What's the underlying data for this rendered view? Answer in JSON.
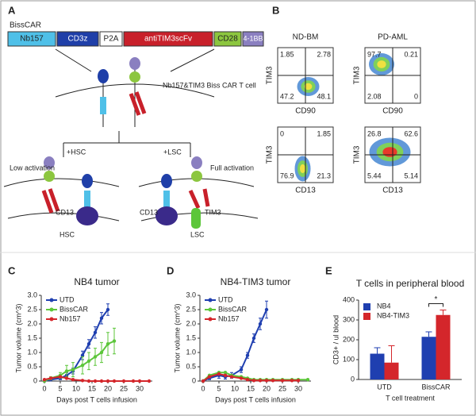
{
  "panel_a": {
    "label": "A",
    "construct": "BissCAR",
    "genes": [
      "Nb157",
      "CD3z",
      "P2A",
      "antiTIM3scFv",
      "CD28",
      "4-1BB"
    ],
    "cell_label": "Nb157&TIM3 Biss CAR T cell",
    "left": {
      "condition": "+HSC",
      "activation": "Low activation",
      "antigen": "CD13",
      "target": "HSC"
    },
    "right": {
      "condition": "+LSC",
      "activation": "Full activation",
      "antigens": [
        "CD13",
        "TIM3"
      ],
      "target": "LSC"
    }
  },
  "panel_b": {
    "label": "B",
    "columns": [
      "ND-BM",
      "PD-AML"
    ],
    "plots": [
      {
        "x_label": "CD90",
        "y_label": "TIM3",
        "quadrants": [
          "1.85",
          "2.78",
          "47.2",
          "48.1"
        ]
      },
      {
        "x_label": "CD90",
        "y_label": "TIM3",
        "quadrants": [
          "97.7",
          "0.21",
          "2.08",
          "0"
        ]
      },
      {
        "x_label": "CD13",
        "y_label": "TIM3",
        "quadrants": [
          "0",
          "1.85",
          "76.9",
          "21.3"
        ]
      },
      {
        "x_label": "CD13",
        "y_label": "TIM3",
        "quadrants": [
          "26.8",
          "62.6",
          "5.44",
          "5.14"
        ]
      }
    ]
  },
  "chart_data": [
    {
      "type": "line",
      "label": "C",
      "title": "NB4 tumor",
      "x_label": "Days post T cells infusion",
      "y_label": "Tumor volume (cm^3)",
      "x": [
        0,
        2,
        5,
        7,
        9,
        12,
        14,
        16,
        18,
        20,
        22,
        25,
        28,
        30,
        33
      ],
      "series": [
        {
          "name": "UTD",
          "color": "#1f3fb0",
          "values": [
            0,
            0.05,
            0.1,
            0.2,
            0.35,
            0.9,
            1.3,
            1.7,
            2.2,
            2.5,
            null,
            null,
            null,
            null,
            null
          ],
          "errors": [
            0.02,
            0.03,
            0.05,
            0.1,
            0.1,
            0.15,
            0.15,
            0.2,
            0.2,
            0.2,
            null,
            null,
            null,
            null,
            null
          ]
        },
        {
          "name": "BissCAR",
          "color": "#5cc63a",
          "values": [
            0,
            0.1,
            0.2,
            0.35,
            0.4,
            0.55,
            0.7,
            0.85,
            1.0,
            1.3,
            1.4,
            null,
            null,
            null,
            null
          ],
          "errors": [
            0.02,
            0.05,
            0.1,
            0.2,
            0.25,
            0.3,
            0.3,
            0.3,
            0.35,
            0.4,
            0.45,
            null,
            null,
            null,
            null
          ]
        },
        {
          "name": "Nb157",
          "color": "#d4262b",
          "values": [
            0.05,
            0.1,
            0.15,
            0.1,
            0.05,
            0.02,
            0,
            0,
            0,
            0,
            0,
            0,
            0,
            0,
            0
          ]
        }
      ],
      "xlim": [
        -1,
        34
      ],
      "xticks": [
        0,
        5,
        10,
        15,
        20,
        25,
        30
      ],
      "ylim": [
        0,
        3
      ],
      "yticks": [
        0,
        0.5,
        {
          "value": 1,
          "label": "1.0"
        },
        1.5,
        {
          "value": 2,
          "label": "2.0"
        },
        2.5,
        {
          "value": 3,
          "label": "3.0"
        }
      ],
      "legend": "upper left"
    },
    {
      "type": "line",
      "label": "D",
      "title": "NB4-TIM3 tumor",
      "x_label": "Days post T cells infusion",
      "y_label": "Tumor volume (cm^3)",
      "x": [
        0,
        2,
        5,
        7,
        9,
        12,
        14,
        16,
        18,
        20,
        22,
        25,
        28,
        30,
        33
      ],
      "series": [
        {
          "name": "UTD",
          "color": "#1f3fb0",
          "values": [
            0,
            0.1,
            0.2,
            0.15,
            0.2,
            0.4,
            0.9,
            1.5,
            2.0,
            2.5,
            null,
            null,
            null,
            null,
            null
          ],
          "errors": [
            0.02,
            0.05,
            0.1,
            0.08,
            0.1,
            0.1,
            0.1,
            0.15,
            0.2,
            0.3,
            null,
            null,
            null,
            null,
            null
          ]
        },
        {
          "name": "BissCAR",
          "color": "#5cc63a",
          "values": [
            0,
            0.2,
            0.3,
            0.3,
            0.2,
            0.15,
            0.1,
            0.05,
            0.05,
            0.05,
            0.05,
            0.05,
            0.05,
            0.05,
            0.05
          ]
        },
        {
          "name": "Nb157",
          "color": "#d4262b",
          "values": [
            0,
            0.15,
            0.25,
            0.2,
            0.15,
            0.1,
            0.05,
            0.02,
            0.02,
            0.02,
            0.02,
            0.02,
            0.02,
            0.02,
            null
          ]
        }
      ],
      "xlim": [
        -1,
        34
      ],
      "xticks": [
        0,
        5,
        10,
        15,
        20,
        25,
        30
      ],
      "ylim": [
        0,
        3
      ],
      "yticks": [
        0,
        0.5,
        {
          "value": 1,
          "label": "1.0"
        },
        1.5,
        {
          "value": 2,
          "label": "2.0"
        },
        2.5,
        {
          "value": 3,
          "label": "3.0"
        }
      ],
      "legend": "upper left"
    },
    {
      "type": "bar",
      "label": "E",
      "title": "T cells in peripheral blood",
      "x_label": "T cell treatment",
      "y_label": "CD3+ / ul blood",
      "categories": [
        "UTD",
        "BissCAR"
      ],
      "series": [
        {
          "name": "NB4",
          "color": "#1f3fb0",
          "values": [
            130,
            215
          ],
          "errors": [
            30,
            25
          ]
        },
        {
          "name": "NB4-TIM3",
          "color": "#d4262b",
          "values": [
            85,
            325
          ],
          "errors": [
            85,
            25
          ]
        }
      ],
      "ylim": [
        0,
        400
      ],
      "yticks": [
        0,
        100,
        200,
        300,
        400
      ],
      "legend": "upper left",
      "annotation": "*"
    }
  ]
}
